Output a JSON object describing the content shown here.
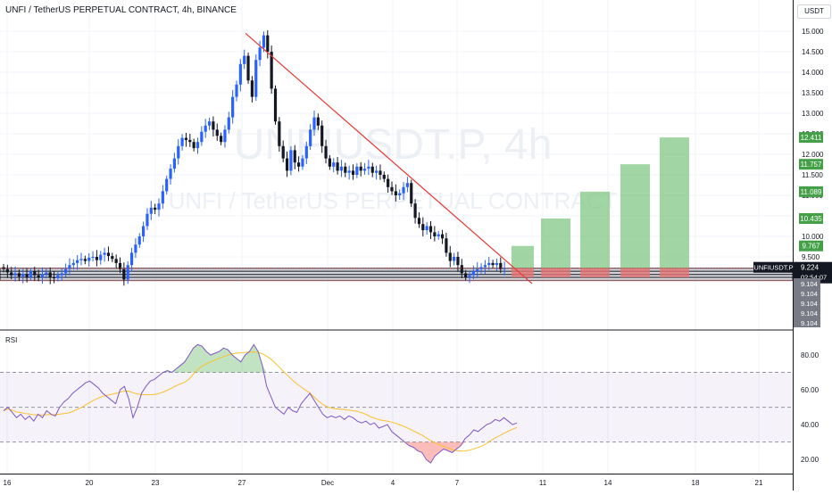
{
  "header": {
    "title": "UNFI / TetherUS PERPETUAL CONTRACT, 4h, BINANCE",
    "currency": "USDT"
  },
  "watermark": {
    "symbol": "UNFIUSDT.P, 4h",
    "name": "UNFI / TetherUS PERPETUAL CONTRACT"
  },
  "price_axis": {
    "ticks": [
      "15.000",
      "14.500",
      "14.000",
      "13.500",
      "13.000",
      "12.500",
      "12.000",
      "11.500",
      "11.000",
      "10.500",
      "10.000",
      "9.500"
    ]
  },
  "price_labels": {
    "targets": [
      {
        "text": "12.411",
        "price": 12.411
      },
      {
        "text": "11.757",
        "price": 11.757
      },
      {
        "text": "11.089",
        "price": 11.089
      },
      {
        "text": "10.435",
        "price": 10.435
      },
      {
        "text": "9.767",
        "price": 9.767
      }
    ],
    "symbol": "UNFIUSDT.P",
    "last_price": "9.224",
    "countdown": "02:54:07",
    "support": [
      "9.104",
      "9.104",
      "9.104",
      "9.104",
      "9.104"
    ]
  },
  "x_axis": {
    "ticks": [
      "16",
      "20",
      "23",
      "27",
      "Dec",
      "4",
      "7",
      "11",
      "14",
      "18",
      "21"
    ]
  },
  "rsi": {
    "title": "RSI",
    "ticks": [
      "80.00",
      "60.00",
      "40.00",
      "20.00"
    ]
  },
  "colors": {
    "up": "#2962ff",
    "down": "#131722",
    "target_fill": "#81c784",
    "stop_fill": "#e57373",
    "trendline": "#e53935",
    "rsi_line": "#7e57c2",
    "rsi_ma": "#fbc02d"
  },
  "chart_data": {
    "type": "candlestick",
    "timeframe": "4h",
    "x_range": [
      "Nov 16",
      "Dec 21"
    ],
    "y_range": [
      8.7,
      15.4
    ],
    "grid": true,
    "closes_approx": [
      9.2,
      9.12,
      9.05,
      9.1,
      9.02,
      9.08,
      9.0,
      9.15,
      9.05,
      9.0,
      9.08,
      9.12,
      9.0,
      8.98,
      9.05,
      9.1,
      9.2,
      9.3,
      9.35,
      9.42,
      9.45,
      9.4,
      9.48,
      9.5,
      9.42,
      9.55,
      9.6,
      9.52,
      9.45,
      9.35,
      9.2,
      8.95,
      9.3,
      9.6,
      9.8,
      10.0,
      10.25,
      10.55,
      10.7,
      10.65,
      10.8,
      11.1,
      11.4,
      11.65,
      11.9,
      12.2,
      12.4,
      12.35,
      12.3,
      12.15,
      12.3,
      12.55,
      12.7,
      12.8,
      12.6,
      12.45,
      12.3,
      12.6,
      12.9,
      13.4,
      13.7,
      14.2,
      14.4,
      13.8,
      13.4,
      14.3,
      14.6,
      14.9,
      14.5,
      13.6,
      12.8,
      12.2,
      11.9,
      11.6,
      12.1,
      11.8,
      11.7,
      11.9,
      12.2,
      12.6,
      12.9,
      12.7,
      12.2,
      11.9,
      11.7,
      11.8,
      11.6,
      11.7,
      11.55,
      11.6,
      11.5,
      11.7,
      11.6,
      11.65,
      11.7,
      11.55,
      11.6,
      11.5,
      11.4,
      11.2,
      11.1,
      11.0,
      11.05,
      11.2,
      11.3,
      10.8,
      10.45,
      10.3,
      10.15,
      10.25,
      10.1,
      10.0,
      10.05,
      9.95,
      9.6,
      9.4,
      9.5,
      9.3,
      9.1,
      9.0,
      9.05,
      9.15,
      9.2,
      9.25,
      9.3,
      9.35,
      9.3,
      9.35,
      9.2,
      9.22
    ],
    "trendline": {
      "from": {
        "x": "Nov 27",
        "y": 14.95
      },
      "to": {
        "x": "Dec 9",
        "y": 8.85
      }
    },
    "horizontal_line": 9.224,
    "support_zone": [
      8.95,
      9.22
    ],
    "targets": [
      9.767,
      10.435,
      11.089,
      11.757,
      12.411
    ],
    "stop": 9.0,
    "rsi": {
      "ylim": [
        10,
        95
      ],
      "bands": [
        70,
        50,
        30
      ],
      "values_approx": [
        48,
        50,
        47,
        44,
        46,
        43,
        45,
        42,
        46,
        44,
        48,
        46,
        45,
        50,
        53,
        55,
        58,
        60,
        62,
        64,
        65,
        63,
        61,
        58,
        56,
        54,
        52,
        60,
        62,
        55,
        44,
        50,
        58,
        62,
        65,
        66,
        68,
        70,
        71,
        70,
        72,
        74,
        76,
        80,
        84,
        86,
        85,
        82,
        80,
        81,
        82,
        84,
        83,
        80,
        78,
        76,
        80,
        82,
        86,
        82,
        74,
        62,
        56,
        50,
        48,
        46,
        50,
        48,
        47,
        52,
        55,
        58,
        54,
        50,
        46,
        44,
        45,
        44,
        45,
        43,
        45,
        44,
        42,
        41,
        42,
        40,
        41,
        38,
        39,
        40,
        36,
        34,
        32,
        30,
        28,
        27,
        25,
        24,
        20,
        18,
        22,
        24,
        26,
        25,
        24,
        26,
        28,
        32,
        34,
        37,
        36,
        38,
        40,
        41,
        43,
        42,
        44,
        42,
        40,
        41
      ]
    }
  }
}
